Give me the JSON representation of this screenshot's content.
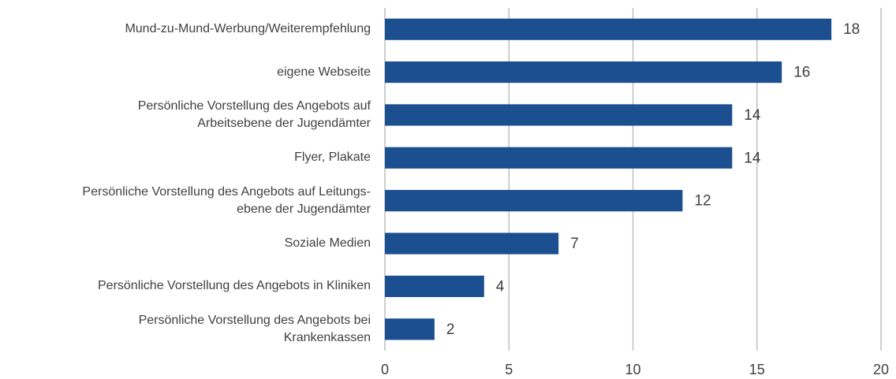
{
  "chart_data": {
    "type": "bar",
    "orientation": "horizontal",
    "categories": [
      "Mund-zu-Mund-Werbung/Weiterempfehlung",
      "eigene Webseite",
      "Persönliche Vorstellung des Angebots auf\nArbeitsebene der Jugendämter",
      "Flyer, Plakate",
      "Persönliche Vorstellung des Angebots auf Leitungs-\nebene der Jugendämter",
      "Soziale Medien",
      "Persönliche Vorstellung des Angebots in Kliniken",
      "Persönliche Vorstellung des Angebots bei\nKrankenkassen"
    ],
    "values": [
      18,
      16,
      14,
      14,
      12,
      7,
      4,
      2
    ],
    "color": "#1b4f8f",
    "xlim": [
      0,
      20
    ],
    "xticks": [
      0,
      5,
      10,
      15,
      20
    ],
    "grid": true
  }
}
